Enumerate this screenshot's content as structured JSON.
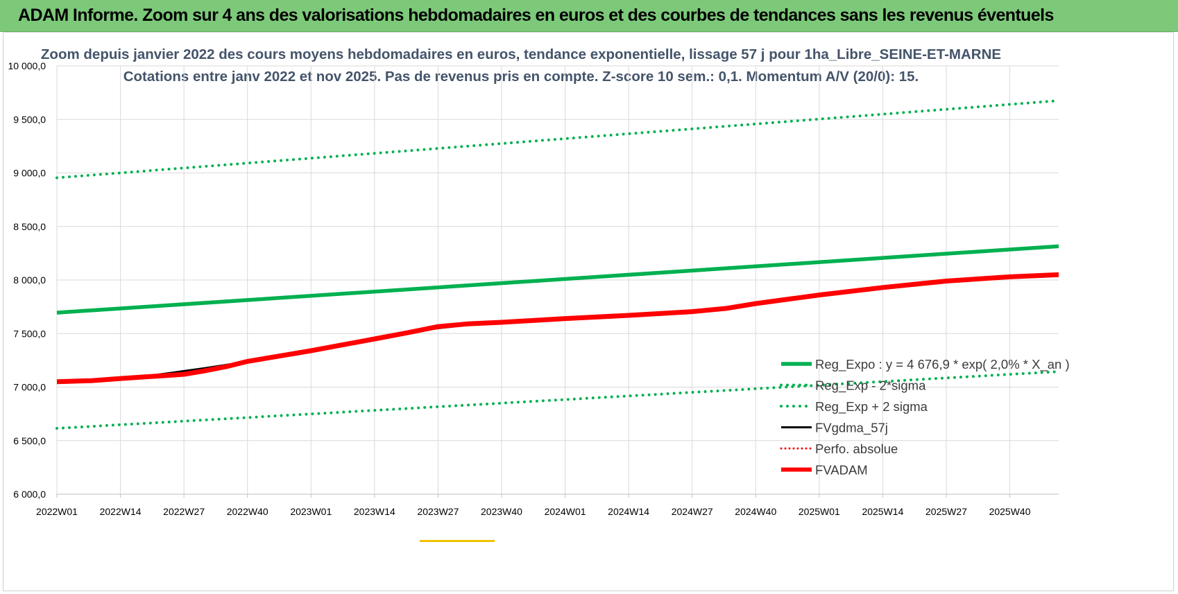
{
  "banner": {
    "title": "ADAM Informe. Zoom sur 4 ans des valorisations hebdomadaires en euros et des courbes de tendances sans les revenus éventuels"
  },
  "colors": {
    "banner_bg": "#7dc97a",
    "green": "#00b050",
    "red": "#ff0000",
    "black": "#000000",
    "title": "#44546a"
  },
  "chart_data": {
    "type": "line",
    "title": "Zoom depuis janvier 2022 des cours moyens hebdomadaires en euros, tendance exponentielle, lissage 57 j pour 1ha_Libre_SEINE-ET-MARNE",
    "subtitle": "Cotations entre janv 2022 et nov 2025. Pas de revenus pris en compte. Z-score 10 sem.: 0,1. Momentum A/V (20/0): 15.",
    "xlabel": "",
    "ylabel": "",
    "ylim": [
      6000,
      10000
    ],
    "yticks": [
      "6 000,0",
      "6 500,0",
      "7 000,0",
      "7 500,0",
      "8 000,0",
      "8 500,0",
      "9 000,0",
      "9 500,0",
      "10 000,0"
    ],
    "ytick_values": [
      6000,
      6500,
      7000,
      7500,
      8000,
      8500,
      9000,
      9500,
      10000
    ],
    "xticks": [
      "2022W01",
      "2022W14",
      "2022W27",
      "2022W40",
      "2023W01",
      "2023W14",
      "2023W27",
      "2023W40",
      "2024W01",
      "2024W14",
      "2024W27",
      "2024W40",
      "2025W01",
      "2025W14",
      "2025W27",
      "2025W40"
    ],
    "xtick_weeks": [
      0,
      13,
      26,
      39,
      52,
      65,
      78,
      91,
      104,
      117,
      130,
      143,
      156,
      169,
      182,
      195
    ],
    "x_max_week": 205,
    "legend_position": "bottom-right",
    "series": [
      {
        "name": "Reg_Expo : y = 4 676,9 * exp( 2,0% *  X_an )",
        "style": "green-solid",
        "points": [
          [
            0,
            7695
          ],
          [
            205,
            8315
          ]
        ]
      },
      {
        "name": "Reg_Exp - 2*sigma",
        "style": "green-dotted",
        "points": [
          [
            0,
            6615
          ],
          [
            205,
            7145
          ]
        ]
      },
      {
        "name": "Reg_Exp + 2 sigma",
        "style": "green-dotted",
        "points": [
          [
            0,
            8955
          ],
          [
            205,
            9675
          ]
        ]
      },
      {
        "name": "FVgdma_57j",
        "style": "black-solid",
        "points": [
          [
            0,
            7050
          ],
          [
            7,
            7060
          ],
          [
            13,
            7080
          ],
          [
            18,
            7100
          ],
          [
            23,
            7130
          ],
          [
            26,
            7150
          ],
          [
            30,
            7175
          ],
          [
            35,
            7210
          ],
          [
            39,
            7240
          ],
          [
            52,
            7340
          ],
          [
            65,
            7450
          ],
          [
            72,
            7510
          ],
          [
            78,
            7550
          ],
          [
            84,
            7580
          ],
          [
            91,
            7600
          ],
          [
            104,
            7640
          ],
          [
            117,
            7670
          ],
          [
            130,
            7700
          ],
          [
            137,
            7730
          ],
          [
            143,
            7780
          ],
          [
            156,
            7860
          ],
          [
            169,
            7930
          ],
          [
            182,
            7990
          ],
          [
            195,
            8030
          ],
          [
            205,
            8050
          ]
        ]
      },
      {
        "name": "Perfo. absolue",
        "style": "red-dotted",
        "points": []
      },
      {
        "name": "FVADAM",
        "style": "red-thick",
        "points": [
          [
            0,
            7050
          ],
          [
            7,
            7060
          ],
          [
            13,
            7080
          ],
          [
            18,
            7095
          ],
          [
            23,
            7110
          ],
          [
            26,
            7120
          ],
          [
            30,
            7150
          ],
          [
            35,
            7195
          ],
          [
            39,
            7240
          ],
          [
            52,
            7340
          ],
          [
            65,
            7450
          ],
          [
            72,
            7510
          ],
          [
            78,
            7565
          ],
          [
            84,
            7590
          ],
          [
            91,
            7605
          ],
          [
            104,
            7640
          ],
          [
            117,
            7670
          ],
          [
            130,
            7705
          ],
          [
            137,
            7735
          ],
          [
            143,
            7780
          ],
          [
            156,
            7860
          ],
          [
            169,
            7930
          ],
          [
            182,
            7990
          ],
          [
            195,
            8030
          ],
          [
            205,
            8050
          ]
        ]
      }
    ]
  }
}
